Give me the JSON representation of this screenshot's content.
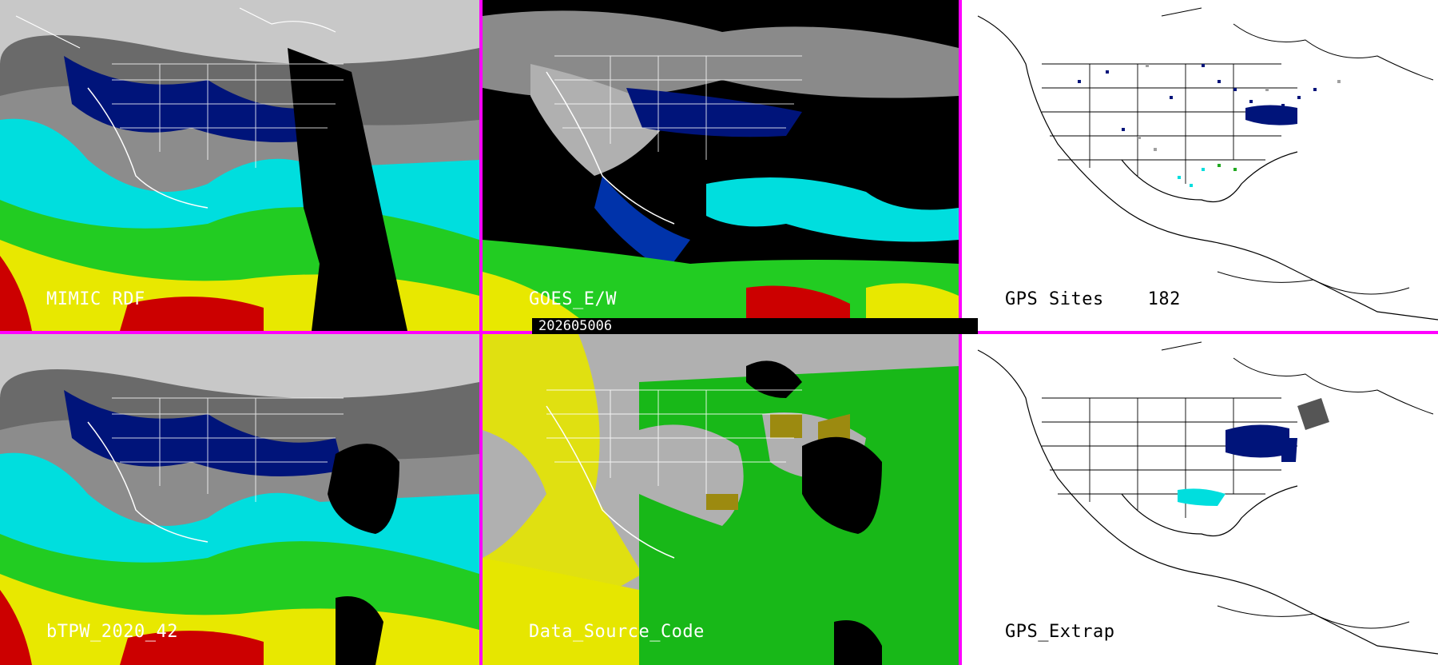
{
  "panels": {
    "mimic_rdf": {
      "label": "MIMIC RDF"
    },
    "goes_ew": {
      "label": "GOES_E/W"
    },
    "gps_sites": {
      "label": "GPS Sites    182"
    },
    "btpw": {
      "label": "bTPW_2020_42"
    },
    "data_source_code": {
      "label": "Data_Source_Code"
    },
    "gps_extrap": {
      "label": "GPS_Extrap"
    }
  },
  "timestamp": "202605006",
  "colors": {
    "divider": "#ff00ff",
    "ocean_cyan": "#00e5e5",
    "green": "#22cc22",
    "yellow": "#e8e800",
    "red": "#cc0000",
    "dark_blue": "#00147a",
    "grey": "#a0a0a0",
    "source_grey": "#b0b0b0",
    "source_yellow": "#e6e600",
    "source_green": "#18b818",
    "olive": "#9c8a10"
  }
}
